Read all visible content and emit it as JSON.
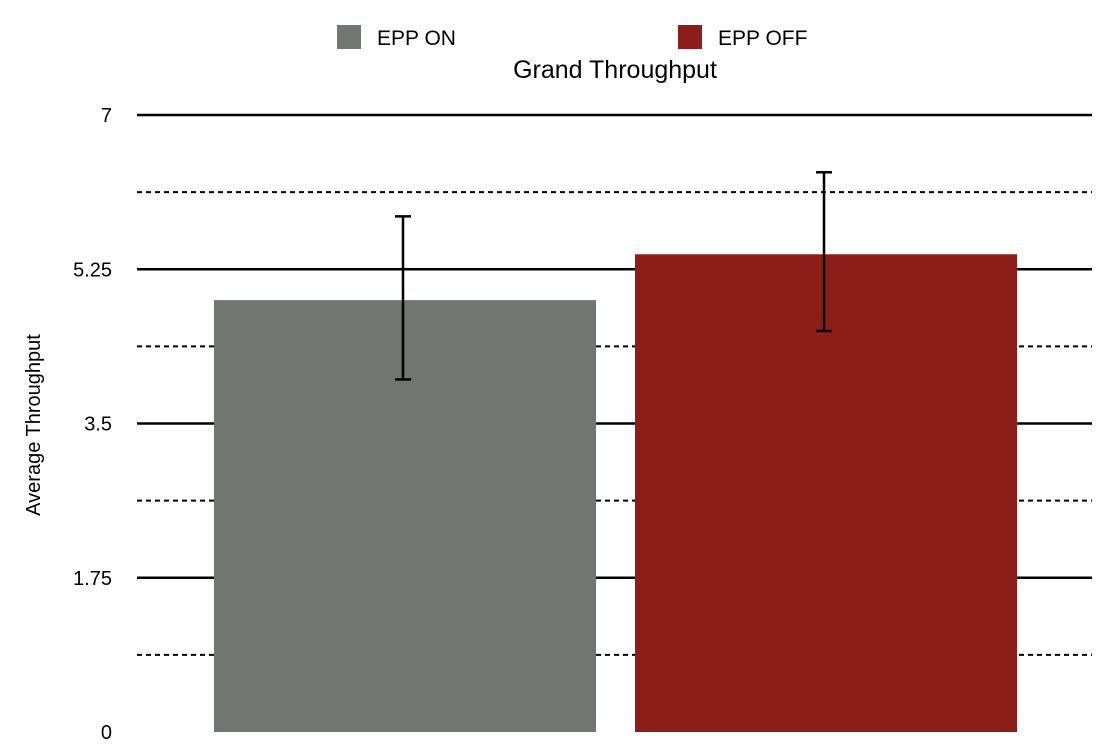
{
  "chart_data": {
    "type": "bar",
    "title": "Grand Throughput",
    "ylabel": "Average Throughput",
    "xlabel": "",
    "ylim": [
      0,
      7
    ],
    "yticks": [
      "0",
      "1.75",
      "3.5",
      "5.25",
      "7"
    ],
    "minor_gridlines": "dashed",
    "major_gridlines": "solid",
    "legend_position": "top",
    "series": [
      {
        "name": "EPP ON",
        "value": 4.9,
        "error_low": 4.0,
        "error_high": 5.85,
        "color": "#717673"
      },
      {
        "name": "EPP OFF",
        "value": 5.42,
        "error_low": 4.55,
        "error_high": 6.35,
        "color": "#8c1d18"
      }
    ]
  }
}
